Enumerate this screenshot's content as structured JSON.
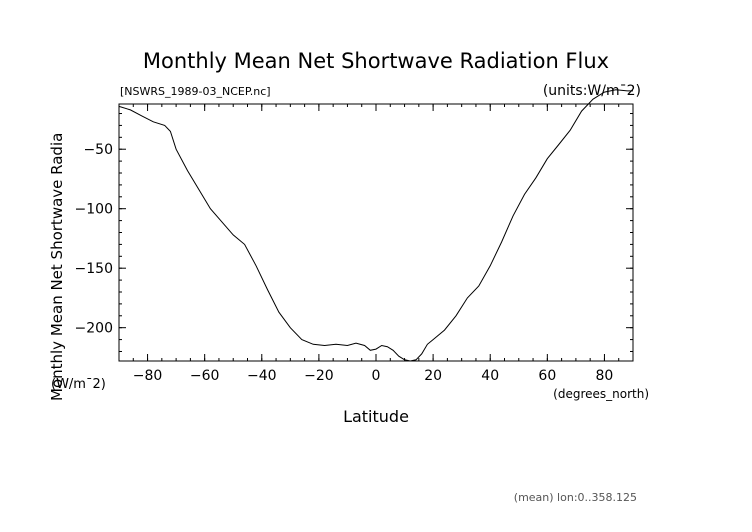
{
  "chart_data": {
    "type": "line",
    "title": "Monthly Mean Net Shortwave Radiation Flux",
    "file_label": "[NSWRS_1989-03_NCEP.nc]",
    "units_label": "(units:W/m¯2)",
    "xlabel": "Latitude",
    "xunits": "(degrees_north)",
    "ylabel": "Monthly Mean Net Shortwave Radia",
    "yunits": "(W/m¯2)",
    "footer": "(mean) lon:0..358.125",
    "xlim": [
      -90,
      90
    ],
    "ylim": [
      -228,
      -12
    ],
    "xticks": [
      -80,
      -60,
      -40,
      -20,
      0,
      20,
      40,
      60,
      80
    ],
    "yticks": [
      -50,
      -100,
      -150,
      -200
    ],
    "series": [
      {
        "x": [
          -90,
          -86,
          -82,
          -78,
          -74,
          -72,
          -70,
          -66,
          -62,
          -58,
          -54,
          -50,
          -46,
          -42,
          -38,
          -34,
          -30,
          -26,
          -22,
          -18,
          -14,
          -10,
          -7,
          -4,
          -2,
          0,
          2,
          4,
          6,
          8,
          10,
          12,
          14,
          16,
          18,
          20,
          24,
          28,
          32,
          36,
          40,
          44,
          48,
          52,
          56,
          60,
          64,
          68,
          72,
          76,
          80,
          84,
          88,
          90
        ],
        "y": [
          -14,
          -17,
          -22,
          -27,
          -30,
          -35,
          -50,
          -68,
          -84,
          -100,
          -111,
          -122,
          -130,
          -148,
          -168,
          -187,
          -200,
          -210,
          -214,
          -215,
          -214,
          -215,
          -213,
          -215,
          -219,
          -218,
          -215,
          -216,
          -219,
          -224,
          -227,
          -228,
          -227,
          -222,
          -214,
          -210,
          -202,
          -190,
          -175,
          -165,
          -148,
          -128,
          -106,
          -88,
          -74,
          -58,
          -46,
          -34,
          -18,
          -8,
          -2,
          0,
          -1,
          -1
        ]
      }
    ]
  }
}
